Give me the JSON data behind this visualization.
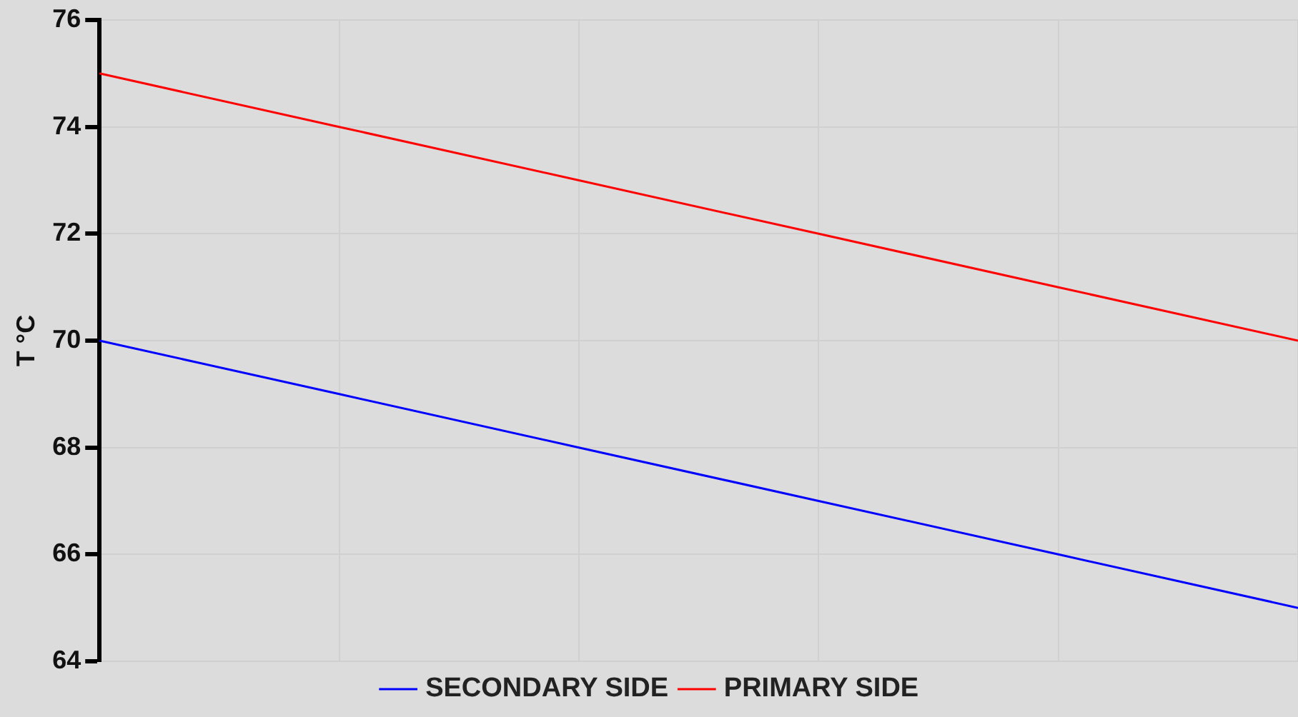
{
  "chart_data": {
    "type": "line",
    "ylabel": "T °C",
    "categories": [
      null,
      null,
      null,
      null,
      null,
      null
    ],
    "series": [
      {
        "name": "SECONDARY SIDE",
        "color": "#0000ff",
        "values": [
          70,
          69,
          68,
          67,
          66,
          65
        ]
      },
      {
        "name": "PRIMARY SIDE",
        "color": "#ff0000",
        "values": [
          75,
          74,
          73,
          72,
          71,
          70
        ]
      }
    ],
    "ylim": [
      64,
      76
    ],
    "yticks": [
      64,
      66,
      68,
      70,
      72,
      74,
      76
    ],
    "grid": true,
    "legend": "bottom",
    "marker": "none",
    "line_style": "solid",
    "tick_labels": "y"
  }
}
